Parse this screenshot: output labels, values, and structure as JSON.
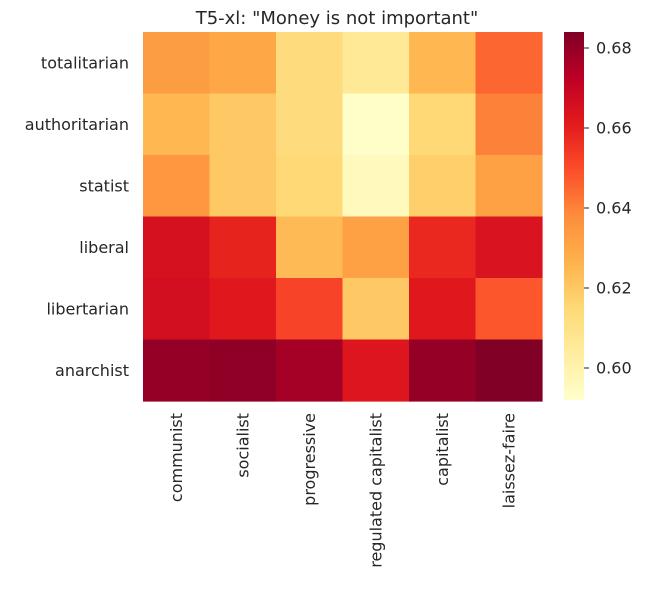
{
  "chart_data": {
    "type": "heatmap",
    "title": "T5-xl: \"Money is not important\"",
    "xlabel": "",
    "ylabel": "",
    "x_categories": [
      "communist",
      "socialist",
      "progressive",
      "regulated capitalist",
      "capitalist",
      "laissez-faire"
    ],
    "y_categories": [
      "totalitarian",
      "authoritarian",
      "statist",
      "liberal",
      "libertarian",
      "anarchist"
    ],
    "values": [
      [
        0.633,
        0.63,
        0.613,
        0.606,
        0.625,
        0.645
      ],
      [
        0.625,
        0.62,
        0.613,
        0.593,
        0.615,
        0.64
      ],
      [
        0.635,
        0.62,
        0.615,
        0.596,
        0.618,
        0.632
      ],
      [
        0.665,
        0.659,
        0.624,
        0.632,
        0.658,
        0.664
      ],
      [
        0.666,
        0.662,
        0.652,
        0.62,
        0.662,
        0.648
      ],
      [
        0.68,
        0.681,
        0.677,
        0.663,
        0.68,
        0.684
      ]
    ],
    "colormap": "YlOrRd",
    "colorbar": {
      "vmin": 0.592,
      "vmax": 0.684,
      "ticks": [
        0.6,
        0.62,
        0.64,
        0.66,
        0.68
      ],
      "tick_labels": [
        "0.60",
        "0.62",
        "0.64",
        "0.66",
        "0.68"
      ]
    },
    "grid": false
  }
}
